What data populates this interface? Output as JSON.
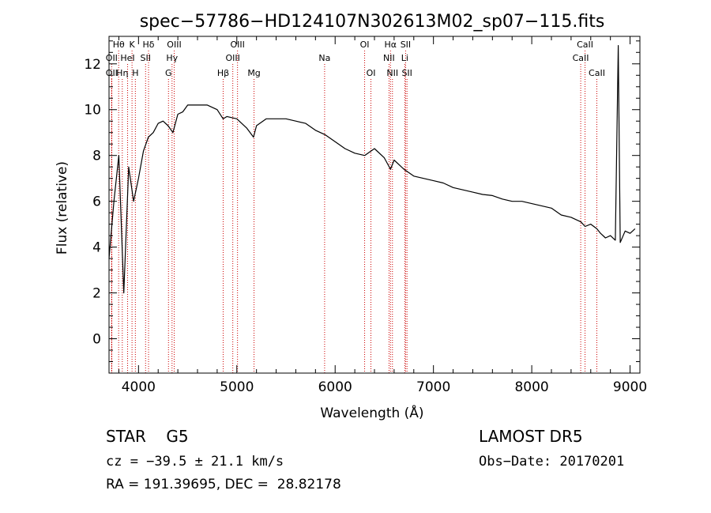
{
  "chart_data": {
    "type": "line",
    "title": "spec−57786−HD124107N302613M02_sp07−115.fits",
    "xlabel": "Wavelength (Å)",
    "ylabel": "Flux (relative)",
    "xlim": [
      3700,
      9100
    ],
    "ylim": [
      -1.5,
      13.2
    ],
    "xticks": [
      4000,
      5000,
      6000,
      7000,
      8000,
      9000
    ],
    "yticks": [
      0,
      2,
      4,
      6,
      8,
      10,
      12
    ],
    "series": [
      {
        "x": [
          3700,
          3750,
          3800,
          3850,
          3900,
          3950,
          4000,
          4050,
          4100,
          4150,
          4200,
          4250,
          4300,
          4350,
          4400,
          4450,
          4500,
          4600,
          4700,
          4800,
          4860,
          4900,
          5000,
          5100,
          5170,
          5200,
          5300,
          5400,
          5500,
          5600,
          5700,
          5800,
          5900,
          6000,
          6100,
          6200,
          6300,
          6400,
          6500,
          6563,
          6600,
          6700,
          6800,
          6900,
          7000,
          7100,
          7200,
          7300,
          7400,
          7500,
          7600,
          7700,
          7800,
          7900,
          8000,
          8100,
          8200,
          8300,
          8400,
          8500,
          8542,
          8600,
          8662,
          8700,
          8750,
          8800,
          8850,
          8880,
          8900,
          8950,
          9000,
          9050
        ],
        "y": [
          3.5,
          6.0,
          8.0,
          2.0,
          7.5,
          6.0,
          7.0,
          8.2,
          8.8,
          9.0,
          9.4,
          9.5,
          9.3,
          9.0,
          9.8,
          9.9,
          10.2,
          10.2,
          10.2,
          10.0,
          9.6,
          9.7,
          9.6,
          9.2,
          8.8,
          9.3,
          9.6,
          9.6,
          9.6,
          9.5,
          9.4,
          9.1,
          8.9,
          8.6,
          8.3,
          8.1,
          8.0,
          8.3,
          7.9,
          7.4,
          7.8,
          7.4,
          7.1,
          7.0,
          6.9,
          6.8,
          6.6,
          6.5,
          6.4,
          6.3,
          6.25,
          6.1,
          6.0,
          6.0,
          5.9,
          5.8,
          5.7,
          5.4,
          5.3,
          5.1,
          4.9,
          5.0,
          4.8,
          4.6,
          4.4,
          4.5,
          4.3,
          12.8,
          4.2,
          4.7,
          4.6,
          4.8
        ]
      }
    ],
    "lines": [
      {
        "label": "Hθ",
        "x": 3798,
        "row": 0
      },
      {
        "label": "K",
        "x": 3934,
        "row": 0
      },
      {
        "label": "Hδ",
        "x": 4102,
        "row": 0
      },
      {
        "label": "OIII",
        "x": 4363,
        "row": 0
      },
      {
        "label": "OIII",
        "x": 5007,
        "row": 0
      },
      {
        "label": "OI",
        "x": 6300,
        "row": 0
      },
      {
        "label": "Hα",
        "x": 6563,
        "row": 0
      },
      {
        "label": "SII",
        "x": 6717,
        "row": 0
      },
      {
        "label": "CaII",
        "x": 8542,
        "row": 0
      },
      {
        "label": "OII",
        "x": 3727,
        "row": 1
      },
      {
        "label": "HeI",
        "x": 3889,
        "row": 1
      },
      {
        "label": "SII",
        "x": 4072,
        "row": 1
      },
      {
        "label": "Hγ",
        "x": 4341,
        "row": 1
      },
      {
        "label": "OIII",
        "x": 4959,
        "row": 1
      },
      {
        "label": "Na",
        "x": 5893,
        "row": 1
      },
      {
        "label": "NII",
        "x": 6548,
        "row": 1
      },
      {
        "label": "Li",
        "x": 6708,
        "row": 1
      },
      {
        "label": "CaII",
        "x": 8498,
        "row": 1
      },
      {
        "label": "OII",
        "x": 3727,
        "row": 2
      },
      {
        "label": "Hη",
        "x": 3835,
        "row": 2
      },
      {
        "label": "H",
        "x": 3968,
        "row": 2
      },
      {
        "label": "G",
        "x": 4305,
        "row": 2
      },
      {
        "label": "Hβ",
        "x": 4861,
        "row": 2
      },
      {
        "label": "Mg",
        "x": 5175,
        "row": 2
      },
      {
        "label": "OI",
        "x": 6364,
        "row": 2
      },
      {
        "label": "NII",
        "x": 6583,
        "row": 2
      },
      {
        "label": "SII",
        "x": 6731,
        "row": 2
      },
      {
        "label": "CaII",
        "x": 8662,
        "row": 2
      }
    ],
    "colors": {
      "spectrum": "#000000",
      "line_markers": "#cc0000",
      "axes": "#000000"
    },
    "grid": false
  },
  "info": {
    "object_class": "STAR    G5",
    "survey": "LAMOST DR5",
    "cz": "cz = −39.5 ± 21.1 km/s",
    "obs_date": "Obs−Date: 20170201",
    "coords": "RA = 191.39695, DEC =  28.82178"
  }
}
